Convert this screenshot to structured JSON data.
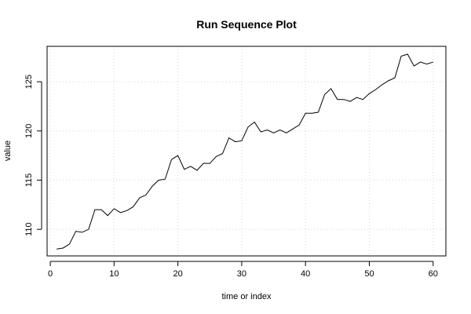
{
  "chart_data": {
    "type": "line",
    "title": "Run Sequence Plot",
    "xlabel": "time or index",
    "ylabel": "value",
    "xlim": [
      -0.5,
      62
    ],
    "ylim": [
      107.3,
      128.6
    ],
    "xticks": [
      0,
      10,
      20,
      30,
      40,
      50,
      60
    ],
    "yticks": [
      110,
      115,
      120,
      125
    ],
    "grid": true,
    "x": [
      1,
      2,
      3,
      4,
      5,
      6,
      7,
      8,
      9,
      10,
      11,
      12,
      13,
      14,
      15,
      16,
      17,
      18,
      19,
      20,
      21,
      22,
      23,
      24,
      25,
      26,
      27,
      28,
      29,
      30,
      31,
      32,
      33,
      34,
      35,
      36,
      37,
      38,
      39,
      40,
      41,
      42,
      43,
      44,
      45,
      46,
      47,
      48,
      49,
      50,
      51,
      52,
      53,
      54,
      55,
      56,
      57,
      58,
      59,
      60
    ],
    "y": [
      108.0,
      108.1,
      108.5,
      109.8,
      109.7,
      110.0,
      112.0,
      112.0,
      111.4,
      112.1,
      111.7,
      111.9,
      112.3,
      113.2,
      113.5,
      114.4,
      115.0,
      115.1,
      117.1,
      117.5,
      116.1,
      116.4,
      116.0,
      116.7,
      116.7,
      117.4,
      117.7,
      119.3,
      118.9,
      119.0,
      120.4,
      120.9,
      119.9,
      120.1,
      119.8,
      120.1,
      119.8,
      120.2,
      120.6,
      121.8,
      121.8,
      121.9,
      123.7,
      124.3,
      123.2,
      123.2,
      123.0,
      123.4,
      123.2,
      123.8,
      124.2,
      124.7,
      125.1,
      125.4,
      127.6,
      127.8,
      126.6,
      127.0,
      126.8,
      127.0
    ]
  }
}
